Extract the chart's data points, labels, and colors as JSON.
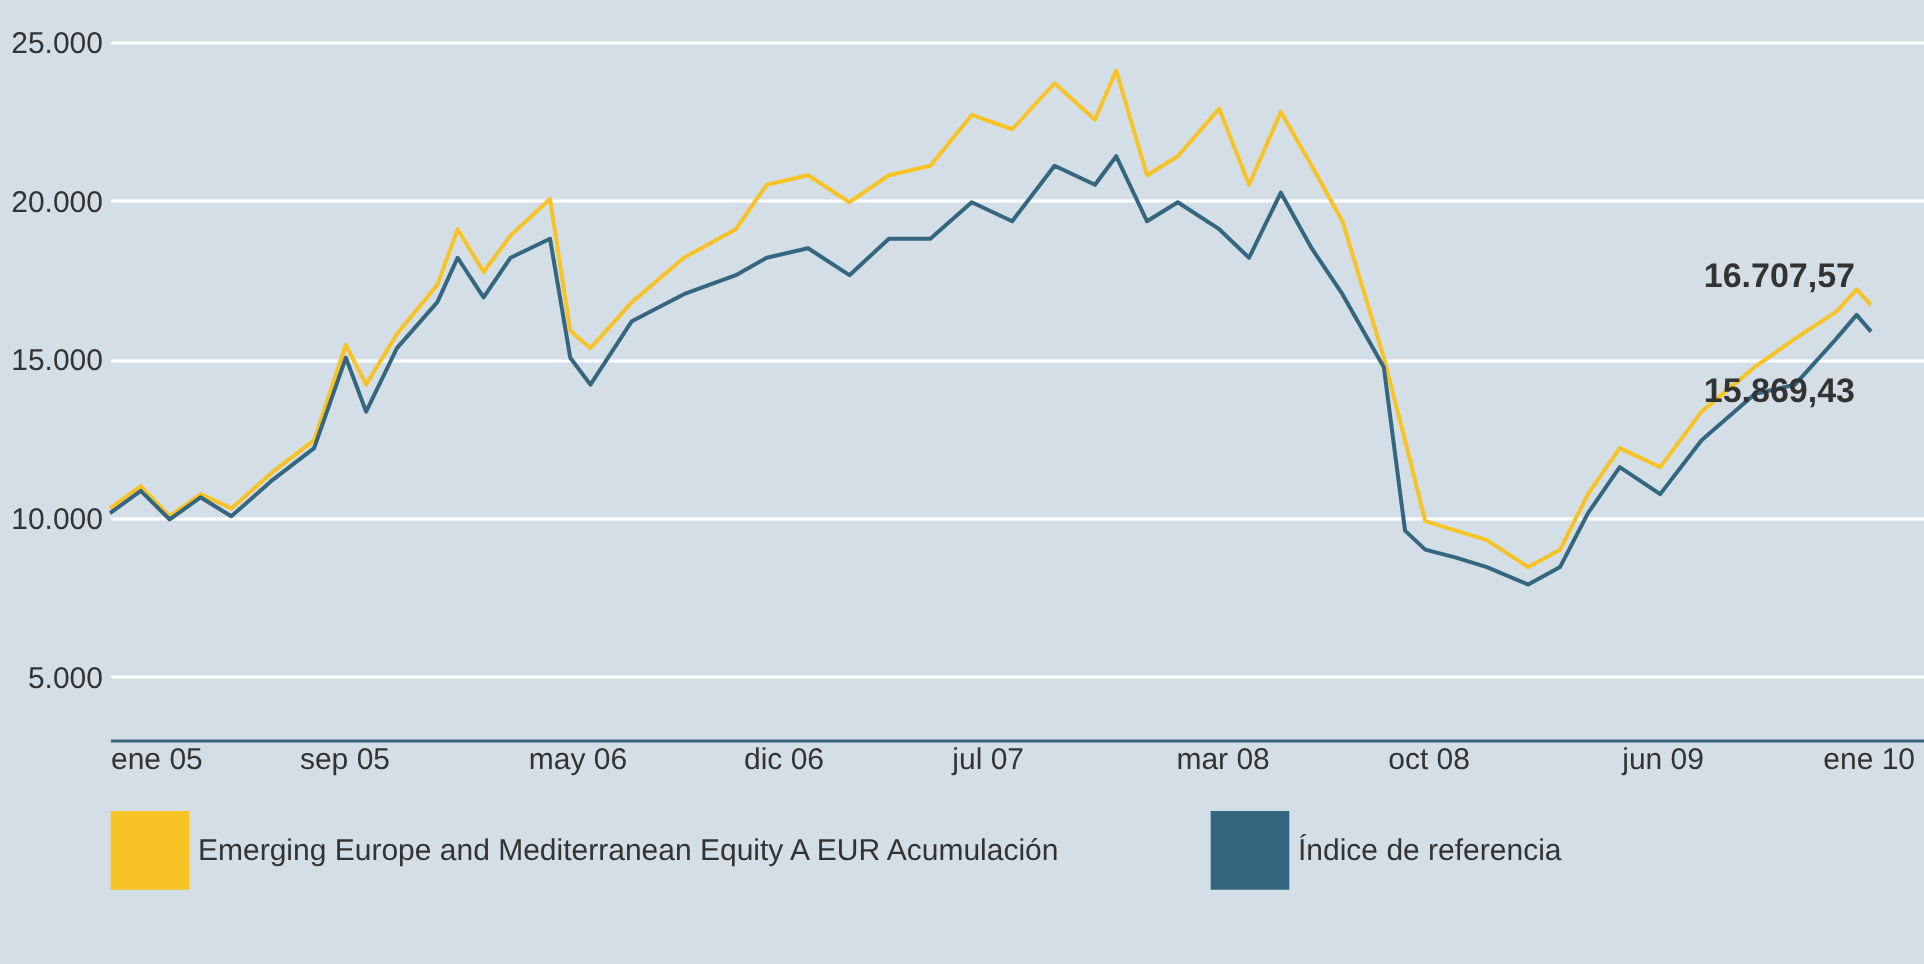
{
  "chart_data": {
    "type": "line",
    "x": [
      "2005-01-01",
      "2005-02-02",
      "2005-03-04",
      "2005-04-05",
      "2005-05-07",
      "2005-06-19",
      "2005-08-01",
      "2005-09-03",
      "2005-09-24",
      "2005-10-26",
      "2005-12-07",
      "2005-12-28",
      "2006-01-24",
      "2006-02-21",
      "2006-04-03",
      "2006-04-24",
      "2006-05-15",
      "2006-06-27",
      "2006-08-20",
      "2006-10-13",
      "2006-11-14",
      "2006-12-27",
      "2007-02-08",
      "2007-03-21",
      "2007-05-03",
      "2007-06-15",
      "2007-07-27",
      "2007-09-09",
      "2007-10-21",
      "2007-11-12",
      "2007-12-14",
      "2008-01-15",
      "2008-02-27",
      "2008-03-29",
      "2008-05-01",
      "2008-06-02",
      "2008-07-04",
      "2008-08-16",
      "2008-09-07",
      "2008-09-28",
      "2008-10-30",
      "2008-12-01",
      "2009-01-13",
      "2009-02-15",
      "2009-03-16",
      "2009-04-18",
      "2009-05-30",
      "2009-07-12",
      "2009-09-05",
      "2009-10-17",
      "2009-11-29",
      "2009-12-20",
      "2010-01-04"
    ],
    "series": [
      {
        "name": "Emerging Europe and Mediterranean Equity A EUR Acumulación",
        "color": "#f7c325",
        "values": [
          10300,
          11000,
          10050,
          10750,
          10300,
          11450,
          12450,
          15450,
          14200,
          15800,
          17350,
          19100,
          17750,
          18900,
          20050,
          15900,
          15350,
          16800,
          18200,
          19100,
          20500,
          20800,
          19950,
          20800,
          21100,
          22700,
          22250,
          23700,
          22550,
          24100,
          20800,
          21400,
          22900,
          20500,
          22800,
          21100,
          19350,
          15050,
          12450,
          9900,
          9600,
          9300,
          8450,
          9000,
          10750,
          12200,
          11600,
          13350,
          14750,
          15650,
          16500,
          17200,
          16710
        ]
      },
      {
        "name": "Índice de referencia",
        "color": "#35667f",
        "values": [
          10150,
          10850,
          9950,
          10650,
          10050,
          11200,
          12200,
          15050,
          13350,
          15350,
          16800,
          18200,
          16950,
          18200,
          18800,
          15050,
          14200,
          16200,
          17050,
          17650,
          18200,
          18500,
          17650,
          18800,
          18800,
          19950,
          19350,
          21100,
          20500,
          21400,
          19350,
          19950,
          19100,
          18200,
          20250,
          18500,
          17050,
          14750,
          9600,
          9000,
          8750,
          8450,
          7900,
          8450,
          10150,
          11600,
          10750,
          12450,
          13900,
          14200,
          15650,
          16400,
          15870
        ]
      }
    ],
    "xlim": [
      "2005-01-01",
      "2010-02-28"
    ],
    "xticks": [
      {
        "value": "2005-01-01",
        "label": "ene 05"
      },
      {
        "value": "2005-09-01",
        "label": "sep 05"
      },
      {
        "value": "2006-05-01",
        "label": "may 06"
      },
      {
        "value": "2006-12-01",
        "label": "dic 06"
      },
      {
        "value": "2007-07-01",
        "label": "jul 07"
      },
      {
        "value": "2008-03-01",
        "label": "mar 08"
      },
      {
        "value": "2008-10-01",
        "label": "oct 08"
      },
      {
        "value": "2009-06-01",
        "label": "jun 09"
      },
      {
        "value": "2010-01-01",
        "label": "ene 10"
      }
    ],
    "ylim": [
      3000,
      25000
    ],
    "yticks": [
      {
        "value": 5000,
        "label": "5.000"
      },
      {
        "value": 10000,
        "label": "10.000"
      },
      {
        "value": 15000,
        "label": "15.000"
      },
      {
        "value": 20000,
        "label": "20.000"
      },
      {
        "value": 25000,
        "label": "25.000"
      }
    ],
    "annotations": [
      {
        "text": "16.707,57",
        "x": "2010-01-04",
        "y": 16707.57
      },
      {
        "text": "15.869,43",
        "x": "2010-01-04",
        "y": 15869.43
      }
    ],
    "grid": "y",
    "legend": "bottom",
    "line_style": "solid",
    "marker": "none"
  }
}
